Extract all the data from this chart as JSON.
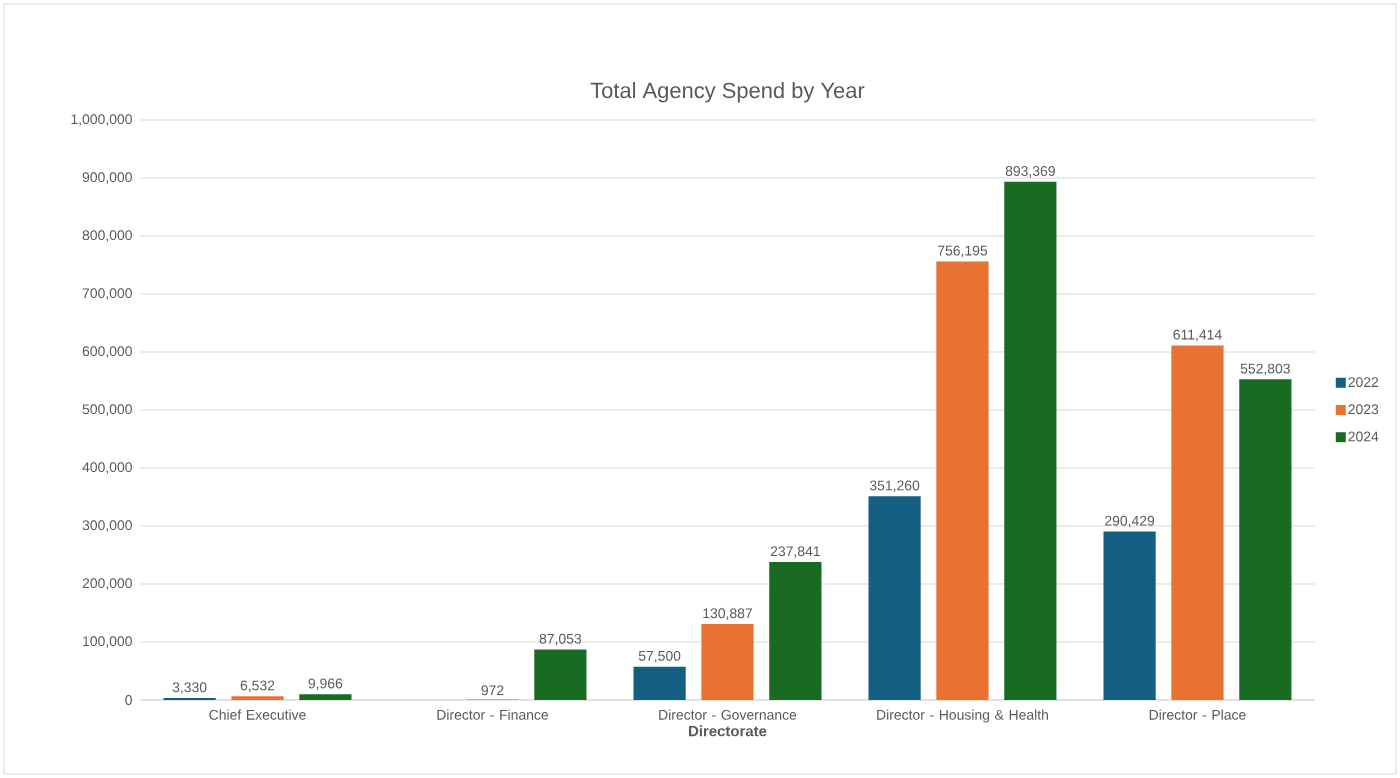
{
  "chart_data": {
    "type": "bar",
    "title": "Total Agency Spend by Year",
    "xlabel": "Directorate",
    "categories": [
      "Chief Executive",
      "Director - Finance",
      "Director - Governance",
      "Director - Housing & Health",
      "Director - Place"
    ],
    "series": [
      {
        "name": "2022",
        "color": "#156082",
        "values": [
          3330,
          null,
          57500,
          351260,
          290429
        ],
        "value_labels": [
          "3,330",
          null,
          "57,500",
          "351,260",
          "290,429"
        ]
      },
      {
        "name": "2023",
        "color": "#e97132",
        "values": [
          6532,
          972,
          130887,
          756195,
          611414
        ],
        "value_labels": [
          "6,532",
          "972",
          "130,887",
          "756,195",
          "611,414"
        ]
      },
      {
        "name": "2024",
        "color": "#196b24",
        "values": [
          9966,
          87053,
          237841,
          893369,
          552803
        ],
        "value_labels": [
          "9,966",
          "87,053",
          "237,841",
          "893,369",
          "552,803"
        ]
      }
    ],
    "ylim": [
      0,
      1000000
    ],
    "yticks": [
      {
        "value": 0,
        "label": "0"
      },
      {
        "value": 100000,
        "label": "100,000"
      },
      {
        "value": 200000,
        "label": "200,000"
      },
      {
        "value": 300000,
        "label": "300,000"
      },
      {
        "value": 400000,
        "label": "400,000"
      },
      {
        "value": 500000,
        "label": "500,000"
      },
      {
        "value": 600000,
        "label": "600,000"
      },
      {
        "value": 700000,
        "label": "700,000"
      },
      {
        "value": 800000,
        "label": "800,000"
      },
      {
        "value": 900000,
        "label": "900,000"
      },
      {
        "value": 1000000,
        "label": "1,000,000"
      }
    ],
    "grid": "y",
    "legend": "right"
  }
}
